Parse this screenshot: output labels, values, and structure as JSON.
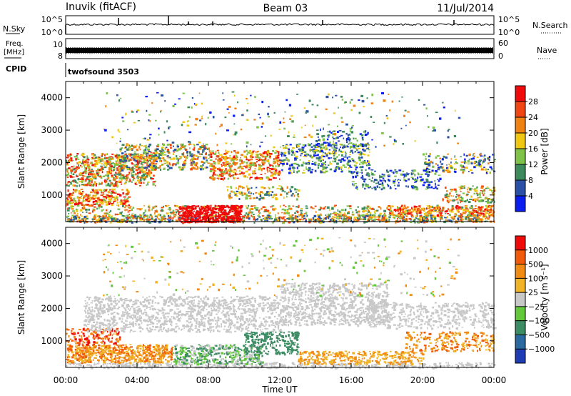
{
  "header": {
    "station": "Inuvik (fitACF)",
    "beam": "Beam 03",
    "date": "11/Jul/2014"
  },
  "strips": {
    "nsky_label": "N.Sky",
    "nsky_ticks": [
      "10^5",
      "10^0"
    ],
    "nsearch_label": "N.Search",
    "nsearch_ticks": [
      "10^5",
      "10^0"
    ],
    "freq_label_1": "Freq.",
    "freq_label_2": "[MHz]",
    "freq_ticks": [
      "10",
      "8"
    ],
    "nave_label": "Nave",
    "nave_ticks": [
      "60",
      "0"
    ],
    "cpid_label": "CPID",
    "cpid_value": "twofsound 3503"
  },
  "chart_data": [
    {
      "type": "heatmap",
      "name": "power",
      "ylabel": "Slant Range [km]",
      "yticks": [
        1000,
        2000,
        3000,
        4000
      ],
      "ylim": [
        180,
        4500
      ],
      "colorbar_label": "Power [dB]",
      "colorbar_ticks": [
        "4",
        "8",
        "12",
        "16",
        "20",
        "24",
        "28"
      ],
      "colorbar_colors": [
        "#0a1ef0",
        "#2a50a8",
        "#3d8a5c",
        "#7ec24a",
        "#f0c814",
        "#f08214",
        "#f04614",
        "#f00a0a"
      ]
    },
    {
      "type": "heatmap",
      "name": "velocity",
      "ylabel": "Slant Range [km]",
      "yticks": [
        1000,
        2000,
        3000,
        4000
      ],
      "ylim": [
        180,
        4500
      ],
      "xlabel": "Time UT",
      "xticks": [
        "00:00",
        "04:00",
        "08:00",
        "12:00",
        "16:00",
        "20:00",
        "00:00"
      ],
      "colorbar_label": "Velocity [m s⁻¹]",
      "colorbar_ticks": [
        "1000",
        "500",
        "100",
        "25",
        "−25",
        "−100",
        "−500",
        "−1000"
      ],
      "colorbar_colors": [
        "#1e3cb4",
        "#2a6aa0",
        "#3c8c64",
        "#64c83c",
        "#c8c8c8",
        "#f0b428",
        "#f08c14",
        "#f05a0a",
        "#f00a0a"
      ]
    }
  ]
}
